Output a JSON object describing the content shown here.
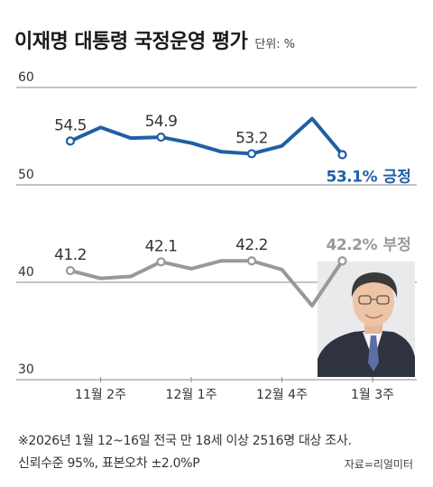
{
  "title": "이재명 대통령 국정운영 평가",
  "unit": "단위: %",
  "chart_data": {
    "type": "line",
    "ylim": [
      30,
      62
    ],
    "yticks": [
      60,
      50,
      40,
      30
    ],
    "grid": true,
    "xticks": [
      {
        "label": "11월 2주",
        "index": 1
      },
      {
        "label": "12월 1주",
        "index": 4
      },
      {
        "label": "12월 4주",
        "index": 7
      },
      {
        "label": "1월 3주",
        "index": 10
      }
    ],
    "series": [
      {
        "name": "긍정",
        "color": "#1f5fa6",
        "values": [
          54.5,
          55.9,
          54.8,
          54.9,
          54.3,
          53.4,
          53.2,
          54.0,
          56.8,
          53.1
        ],
        "labels": [
          {
            "index": 0,
            "text": "54.5"
          },
          {
            "index": 3,
            "text": "54.9"
          },
          {
            "index": 6,
            "text": "53.2"
          }
        ],
        "end_value": "53.1%",
        "end_name": "긍정"
      },
      {
        "name": "부정",
        "color": "#999999",
        "values": [
          41.2,
          40.4,
          40.6,
          42.1,
          41.4,
          42.2,
          42.2,
          41.3,
          37.6,
          42.2
        ],
        "labels": [
          {
            "index": 0,
            "text": "41.2"
          },
          {
            "index": 3,
            "text": "42.1"
          },
          {
            "index": 6,
            "text": "42.2"
          }
        ],
        "end_value": "42.2%",
        "end_name": "부정"
      }
    ]
  },
  "note": {
    "line1": "※2026년 1월 12~16일 전국 만 18세 이상 2516명 대상 조사.",
    "line2": "신뢰수준 95%, 표본오차 ±2.0%P"
  },
  "source": "자료=리얼미터",
  "photo": {
    "name": "portrait-photo"
  }
}
